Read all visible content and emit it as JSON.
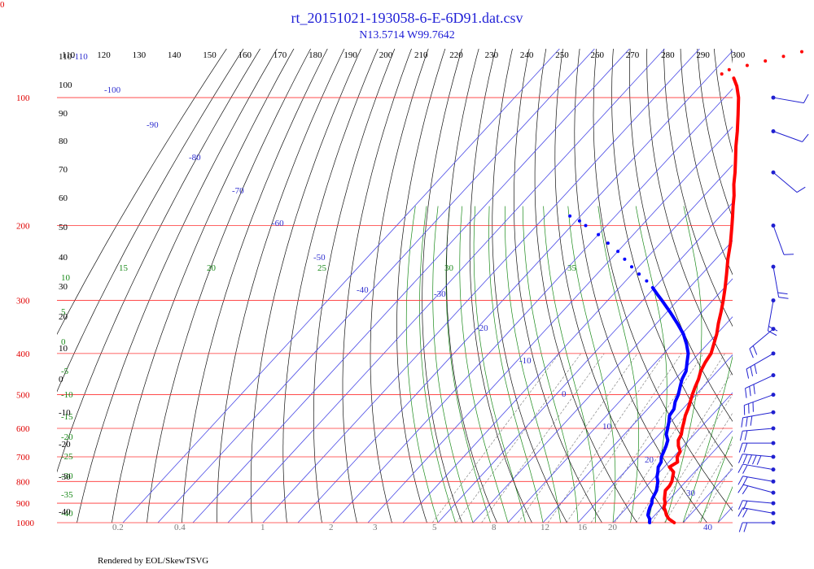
{
  "corner_label": "0",
  "footer": "Rendered by EOL/SkewTSVG",
  "chart_data": {
    "type": "line",
    "title": "rt_20151021-193058-6-E-6D91.dat.csv",
    "subtitle": "N13.5714 W99.7642",
    "pressure_levels": [
      100,
      200,
      300,
      400,
      500,
      600,
      700,
      800,
      900,
      1000
    ],
    "theta_labels": [
      110,
      120,
      130,
      140,
      150,
      160,
      170,
      180,
      190,
      200,
      210,
      220,
      230,
      240,
      250,
      260,
      270,
      280,
      290,
      300
    ],
    "isotherm_labels": [
      -110,
      -100,
      -90,
      -80,
      -70,
      -60,
      -50,
      -40,
      -30,
      -20,
      -10,
      0,
      10,
      20,
      30,
      40
    ],
    "theta_e_labels": [
      15,
      20,
      25,
      30,
      35,
      10,
      5,
      0,
      -5,
      -10,
      -15,
      -20,
      -25,
      -30,
      -35,
      -40
    ],
    "left_labels": [
      110,
      100,
      90,
      80,
      70,
      60,
      50,
      40,
      30,
      20,
      10,
      0,
      -10,
      -20,
      -30,
      -40
    ],
    "mixing_ratio_labels": [
      "0.2",
      "0.4",
      "1",
      "2",
      "3",
      "5",
      "8",
      "12",
      "16",
      "20"
    ],
    "temperature": {
      "name": "",
      "color": "#ff0000",
      "points": [
        [
          1000,
          27.5
        ],
        [
          980,
          25
        ],
        [
          960,
          23.3
        ],
        [
          940,
          22
        ],
        [
          920,
          20.5
        ],
        [
          900,
          19.8
        ],
        [
          880,
          18.5
        ],
        [
          860,
          17.5
        ],
        [
          840,
          16.5
        ],
        [
          820,
          16.5
        ],
        [
          800,
          16
        ],
        [
          780,
          15
        ],
        [
          760,
          14
        ],
        [
          740,
          11.5
        ],
        [
          720,
          12.5
        ],
        [
          700,
          11
        ],
        [
          680,
          10.5
        ],
        [
          660,
          8.5
        ],
        [
          640,
          7
        ],
        [
          620,
          6.3
        ],
        [
          600,
          5
        ],
        [
          580,
          3.8
        ],
        [
          560,
          2.5
        ],
        [
          540,
          1.5
        ],
        [
          520,
          0.3
        ],
        [
          500,
          -1
        ],
        [
          480,
          -2.2
        ],
        [
          460,
          -3.3
        ],
        [
          440,
          -4.8
        ],
        [
          420,
          -5.8
        ],
        [
          400,
          -6.5
        ],
        [
          380,
          -8.2
        ],
        [
          360,
          -10
        ],
        [
          340,
          -12.3
        ],
        [
          320,
          -14.5
        ],
        [
          300,
          -17
        ],
        [
          280,
          -19.8
        ],
        [
          260,
          -23
        ],
        [
          240,
          -26.5
        ],
        [
          220,
          -30
        ],
        [
          200,
          -34.2
        ],
        [
          190,
          -36.5
        ],
        [
          180,
          -39
        ],
        [
          170,
          -41.5
        ],
        [
          160,
          -44.5
        ],
        [
          150,
          -47.3
        ],
        [
          140,
          -50.5
        ],
        [
          130,
          -54
        ],
        [
          120,
          -57.5
        ],
        [
          110,
          -61.5
        ],
        [
          100,
          -66
        ],
        [
          94,
          -69.5
        ],
        [
          90,
          -72.5
        ]
      ],
      "dotted_points": [
        [
          88,
          -77
        ],
        [
          86,
          -76
        ],
        [
          84,
          -72
        ],
        [
          82,
          -68
        ],
        [
          80,
          -64
        ],
        [
          78,
          -60
        ],
        [
          76,
          -57
        ],
        [
          74,
          -55
        ],
        [
          72,
          -53
        ],
        [
          70,
          -52
        ]
      ]
    },
    "dewpoint": {
      "name": "",
      "color": "#0000ff",
      "points": [
        [
          1000,
          20.5
        ],
        [
          980,
          19.5
        ],
        [
          960,
          18
        ],
        [
          940,
          17.2
        ],
        [
          920,
          16.5
        ],
        [
          900,
          16
        ],
        [
          880,
          15
        ],
        [
          860,
          14.5
        ],
        [
          840,
          14
        ],
        [
          820,
          13
        ],
        [
          800,
          12
        ],
        [
          780,
          10.5
        ],
        [
          760,
          9.5
        ],
        [
          740,
          8.3
        ],
        [
          720,
          7.8
        ],
        [
          700,
          6.5
        ],
        [
          680,
          5.8
        ],
        [
          660,
          5
        ],
        [
          640,
          4
        ],
        [
          620,
          2
        ],
        [
          600,
          0.8
        ],
        [
          580,
          -0.5
        ],
        [
          560,
          -2
        ],
        [
          540,
          -2.5
        ],
        [
          520,
          -4
        ],
        [
          500,
          -5
        ],
        [
          480,
          -6.5
        ],
        [
          460,
          -8
        ],
        [
          440,
          -9
        ],
        [
          420,
          -11
        ],
        [
          400,
          -13
        ],
        [
          380,
          -16
        ],
        [
          360,
          -19.5
        ],
        [
          340,
          -24
        ],
        [
          320,
          -29
        ],
        [
          300,
          -34.5
        ],
        [
          290,
          -37.5
        ],
        [
          280,
          -40.5
        ]
      ],
      "dotted_points": [
        [
          270,
          -44
        ],
        [
          260,
          -48
        ],
        [
          250,
          -52
        ],
        [
          240,
          -56
        ],
        [
          230,
          -60
        ],
        [
          220,
          -65
        ],
        [
          210,
          -70
        ],
        [
          200,
          -76
        ],
        [
          195,
          -79
        ],
        [
          190,
          -83
        ]
      ]
    },
    "wind_barbs": [
      {
        "pressure": 1000,
        "dir": 90,
        "speed": 20
      },
      {
        "pressure": 950,
        "dir": 80,
        "speed": 20
      },
      {
        "pressure": 900,
        "dir": 85,
        "speed": 20
      },
      {
        "pressure": 850,
        "dir": 75,
        "speed": 20
      },
      {
        "pressure": 800,
        "dir": 80,
        "speed": 20
      },
      {
        "pressure": 750,
        "dir": 80,
        "speed": 20
      },
      {
        "pressure": 700,
        "dir": 85,
        "speed": 50
      },
      {
        "pressure": 650,
        "dir": 90,
        "speed": 20
      },
      {
        "pressure": 600,
        "dir": 95,
        "speed": 20
      },
      {
        "pressure": 550,
        "dir": 100,
        "speed": 25
      },
      {
        "pressure": 500,
        "dir": 110,
        "speed": 25
      },
      {
        "pressure": 450,
        "dir": 115,
        "speed": 25
      },
      {
        "pressure": 400,
        "dir": 120,
        "speed": 25
      },
      {
        "pressure": 350,
        "dir": 130,
        "speed": 15
      },
      {
        "pressure": 300,
        "dir": 170,
        "speed": 15
      },
      {
        "pressure": 250,
        "dir": 190,
        "speed": 15
      },
      {
        "pressure": 200,
        "dir": 200,
        "speed": 10
      },
      {
        "pressure": 150,
        "dir": 230,
        "speed": 10
      },
      {
        "pressure": 120,
        "dir": 250,
        "speed": 10
      },
      {
        "pressure": 100,
        "dir": 260,
        "speed": 10
      }
    ]
  }
}
